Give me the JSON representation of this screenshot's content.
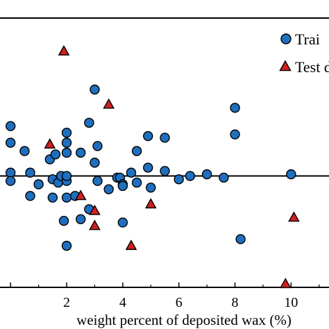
{
  "chart_data": {
    "type": "scatter",
    "xlabel": "weight percent of deposited wax (%)",
    "ylabel": "",
    "xlim": [
      -0.5,
      11.5
    ],
    "ylim": [
      -0.67,
      0.95
    ],
    "x_ticks": [
      0,
      2,
      4,
      6,
      8,
      10
    ],
    "x_tick_labels": [
      "",
      "2",
      "4",
      "6",
      "8",
      "10"
    ],
    "reference_line_y": 0,
    "grid": false,
    "legend_placement": "top-right",
    "legend": [
      {
        "label": "Trai",
        "marker": "circle",
        "color": "#1f6fbf"
      },
      {
        "label": "Test d",
        "marker": "triangle",
        "color": "#d11f1f"
      }
    ],
    "series": [
      {
        "name": "Trai",
        "marker": "circle",
        "color": "#1f6fbf",
        "points": [
          [
            0,
            0.3
          ],
          [
            0,
            0.2
          ],
          [
            0,
            0.02
          ],
          [
            0,
            -0.03
          ],
          [
            0.5,
            0.15
          ],
          [
            0.7,
            0.02
          ],
          [
            0.7,
            -0.12
          ],
          [
            1.0,
            -0.05
          ],
          [
            1.4,
            0.1
          ],
          [
            1.5,
            -0.02
          ],
          [
            1.5,
            -0.13
          ],
          [
            1.6,
            0.13
          ],
          [
            1.7,
            -0.04
          ],
          [
            1.8,
            0.0
          ],
          [
            1.9,
            -0.27
          ],
          [
            2.0,
            0.26
          ],
          [
            2.0,
            0.2
          ],
          [
            2.0,
            0.14
          ],
          [
            2.0,
            -0.03
          ],
          [
            2.0,
            0.0
          ],
          [
            2.0,
            -0.13
          ],
          [
            2.0,
            -0.42
          ],
          [
            2.3,
            -0.12
          ],
          [
            2.5,
            0.14
          ],
          [
            2.5,
            -0.26
          ],
          [
            2.8,
            0.32
          ],
          [
            2.8,
            -0.2
          ],
          [
            3.0,
            0.52
          ],
          [
            3.0,
            0.08
          ],
          [
            3.1,
            0.18
          ],
          [
            3.1,
            -0.03
          ],
          [
            3.5,
            -0.08
          ],
          [
            3.8,
            -0.01
          ],
          [
            3.9,
            -0.01
          ],
          [
            4.0,
            -0.05
          ],
          [
            4.0,
            -0.06
          ],
          [
            4.0,
            -0.28
          ],
          [
            4.3,
            0.02
          ],
          [
            4.5,
            0.15
          ],
          [
            4.5,
            -0.04
          ],
          [
            4.9,
            0.24
          ],
          [
            4.9,
            0.05
          ],
          [
            5.0,
            -0.07
          ],
          [
            5.5,
            0.23
          ],
          [
            5.5,
            0.03
          ],
          [
            6.0,
            -0.02
          ],
          [
            6.4,
            0.0
          ],
          [
            7.0,
            0.01
          ],
          [
            7.6,
            -0.01
          ],
          [
            8.0,
            0.41
          ],
          [
            8.0,
            0.25
          ],
          [
            8.2,
            -0.38
          ],
          [
            10.0,
            0.01
          ]
        ]
      },
      {
        "name": "Test d",
        "marker": "triangle",
        "color": "#d11f1f",
        "points": [
          [
            1.9,
            0.75
          ],
          [
            1.4,
            0.19
          ],
          [
            2.5,
            -0.12
          ],
          [
            3.0,
            -0.21
          ],
          [
            3.0,
            -0.3
          ],
          [
            3.5,
            0.43
          ],
          [
            4.3,
            -0.42
          ],
          [
            5.0,
            -0.17
          ],
          [
            9.8,
            -0.65
          ],
          [
            10.1,
            -0.25
          ]
        ]
      }
    ]
  }
}
